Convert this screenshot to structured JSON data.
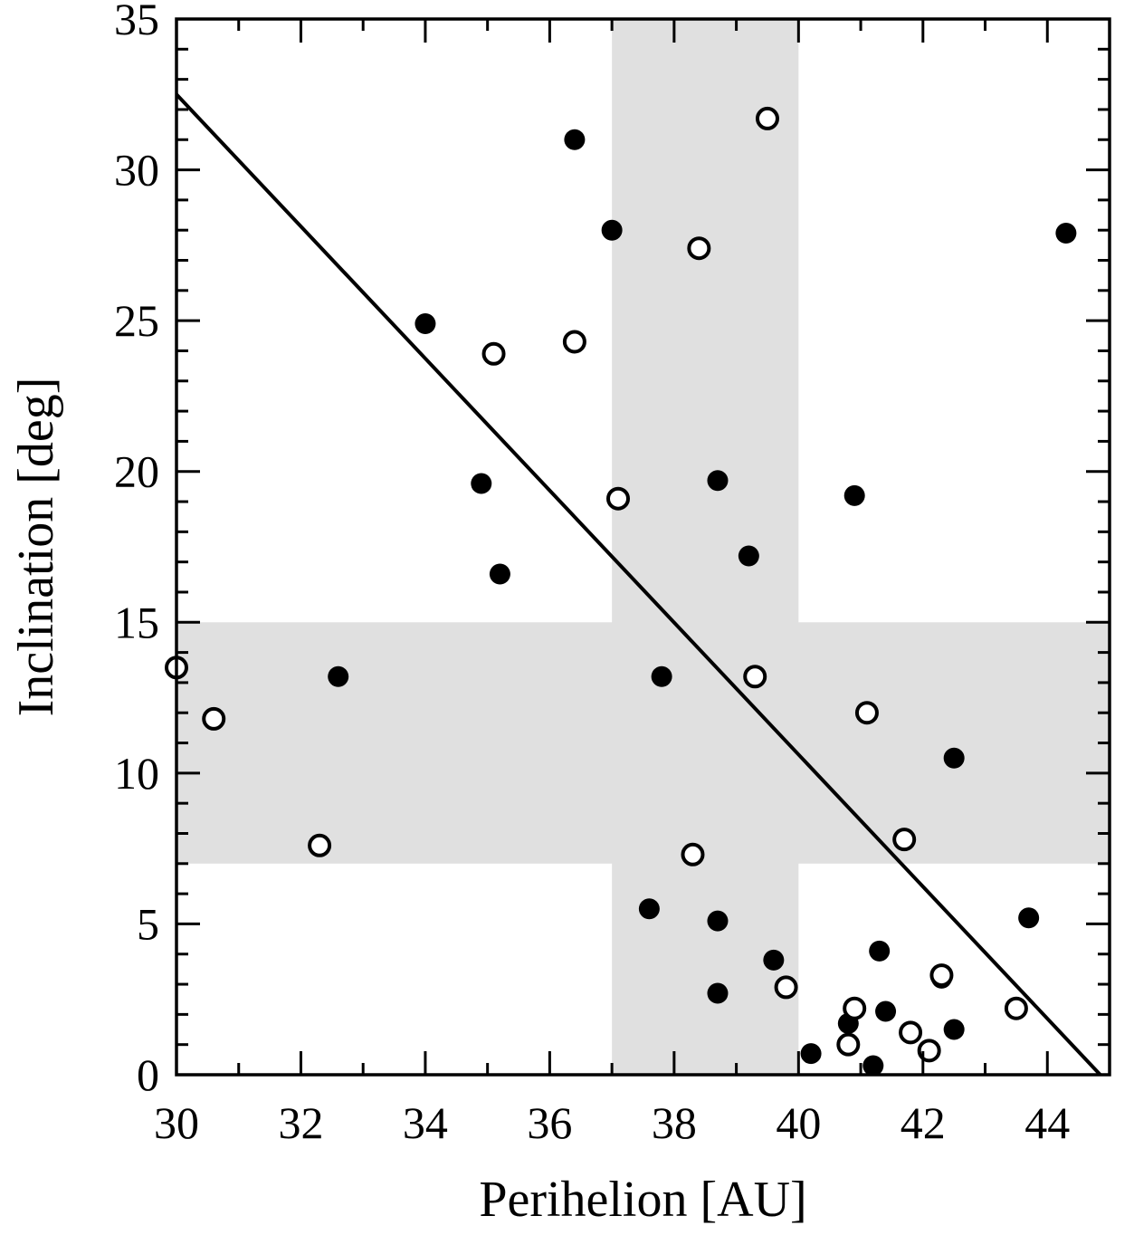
{
  "chart_data": {
    "type": "scatter",
    "title": "",
    "xlabel": "Perihelion [AU]",
    "ylabel": "Inclination [deg]",
    "xlim": [
      30,
      45
    ],
    "ylim": [
      0,
      35
    ],
    "x_ticks": [
      30,
      32,
      34,
      36,
      38,
      40,
      42,
      44
    ],
    "y_ticks": [
      0,
      5,
      10,
      15,
      20,
      25,
      30,
      35
    ],
    "grid": false,
    "legend": "none",
    "colors": {
      "band": "#e0e0e0",
      "marker": "#000000",
      "background": "#ffffff"
    },
    "shaded_regions": [
      {
        "axis": "x",
        "range": [
          37,
          40
        ]
      },
      {
        "axis": "y",
        "range": [
          7,
          15
        ]
      }
    ],
    "fit_line": {
      "x": [
        30,
        44.85
      ],
      "y": [
        32.5,
        0
      ]
    },
    "series": [
      {
        "marker": "filled-circle",
        "x": [
          36.4,
          37.0,
          44.3,
          34.0,
          34.9,
          35.2,
          38.7,
          39.2,
          40.9,
          32.6,
          37.8,
          42.5,
          37.6,
          38.7,
          43.7,
          39.6,
          41.3,
          42.3,
          38.7,
          41.4,
          40.8,
          42.5,
          40.2,
          41.2
        ],
        "y": [
          31.0,
          28.0,
          27.9,
          24.9,
          19.6,
          16.6,
          19.7,
          17.2,
          19.2,
          13.2,
          13.2,
          10.5,
          5.5,
          5.1,
          5.2,
          3.8,
          4.1,
          3.2,
          2.7,
          2.1,
          1.7,
          1.5,
          0.7,
          0.3
        ]
      },
      {
        "marker": "open-circle",
        "x": [
          39.5,
          38.4,
          36.4,
          35.1,
          37.1,
          30.0,
          30.6,
          39.3,
          41.1,
          32.3,
          38.3,
          41.7,
          39.8,
          43.5,
          40.9,
          41.8,
          40.8,
          42.1,
          42.3
        ],
        "y": [
          31.7,
          27.4,
          24.3,
          23.9,
          19.1,
          13.5,
          11.8,
          13.2,
          12.0,
          7.6,
          7.3,
          7.8,
          2.9,
          2.2,
          2.2,
          1.4,
          1.0,
          0.8,
          3.3
        ]
      }
    ]
  }
}
